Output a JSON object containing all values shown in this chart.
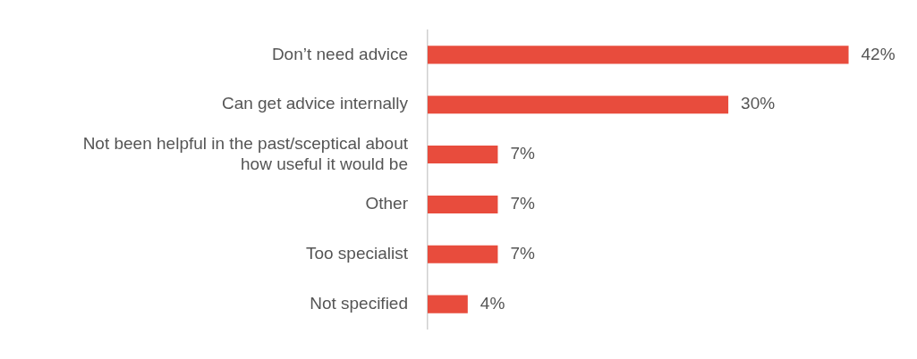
{
  "chart_data": {
    "type": "bar",
    "orientation": "horizontal",
    "categories": [
      "Don’t need advice",
      "Can get advice internally",
      "Not been helpful in the past/sceptical about how useful it would be",
      "Other",
      "Too specialist",
      "Not specified"
    ],
    "values": [
      42,
      30,
      7,
      7,
      7,
      4
    ],
    "value_labels": [
      "42%",
      "30%",
      "7%",
      "7%",
      "7%",
      "4%"
    ],
    "color": "#e84c3d",
    "legend": false
  }
}
